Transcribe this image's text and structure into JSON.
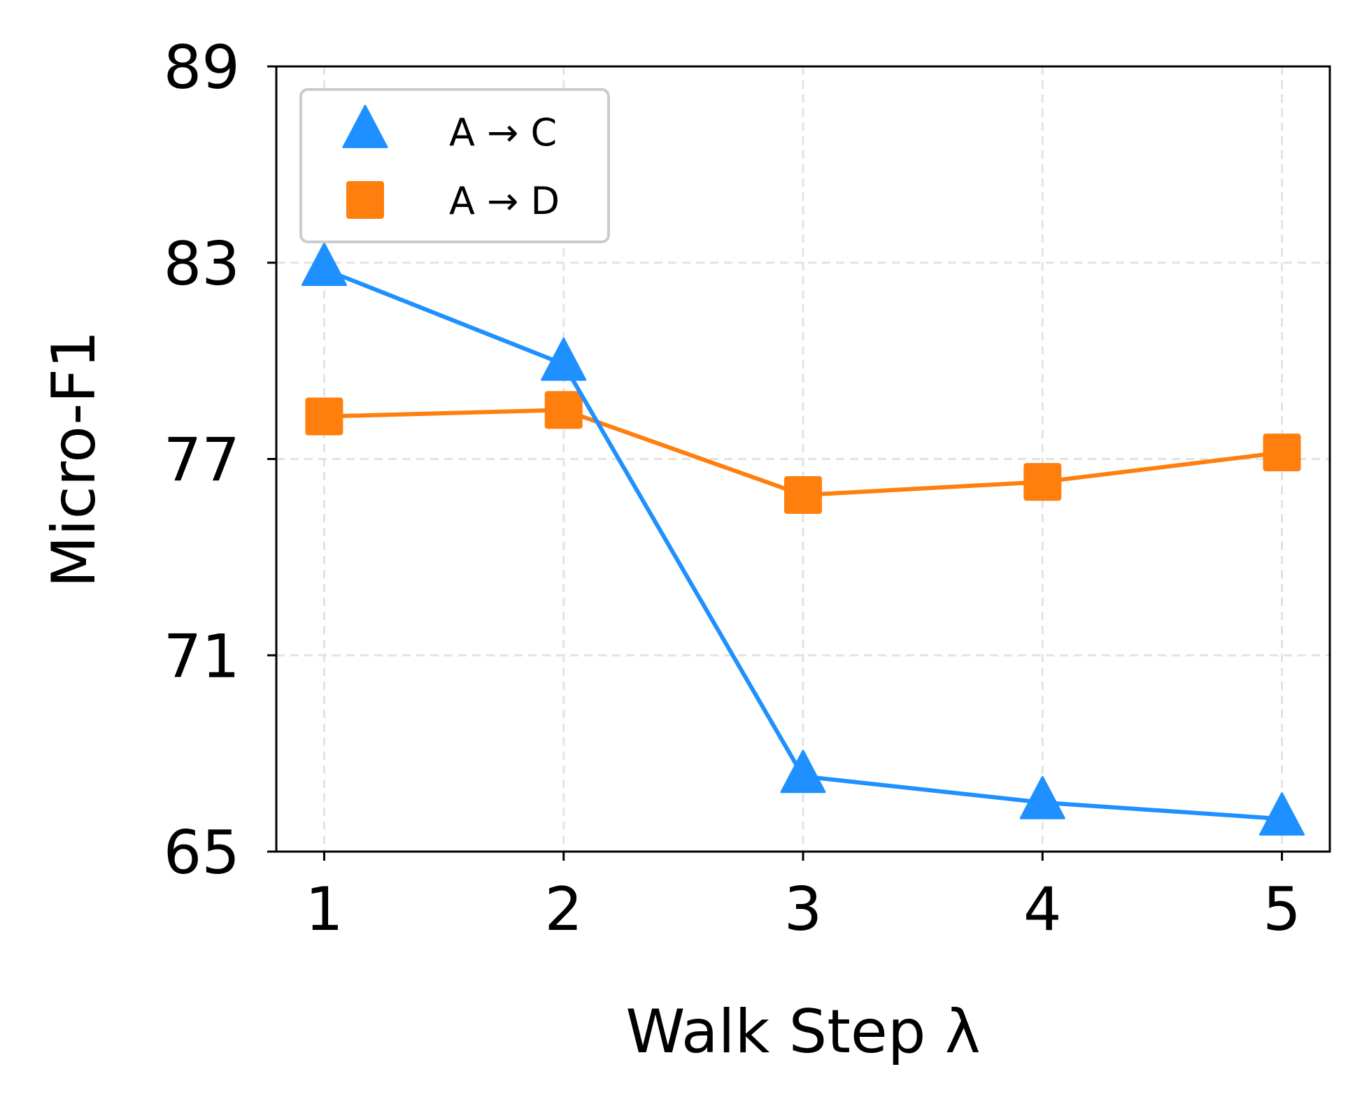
{
  "chart_data": {
    "type": "line",
    "title": "",
    "xlabel": "Walk Step λ",
    "ylabel": "Micro-F1",
    "x": [
      1,
      2,
      3,
      4,
      5
    ],
    "xlim": [
      0.8,
      5.2
    ],
    "ylim": [
      65,
      89
    ],
    "xticks": [
      "1",
      "2",
      "3",
      "4",
      "5"
    ],
    "yticks": [
      "65",
      "71",
      "77",
      "83",
      "89"
    ],
    "grid": true,
    "legend_position": "top-left",
    "series": [
      {
        "name": "A → C",
        "marker": "triangle",
        "color": "#1e90ff",
        "values": [
          82.8,
          79.9,
          67.3,
          66.5,
          66.0
        ]
      },
      {
        "name": "A → D",
        "marker": "square",
        "color": "#ff7f0e",
        "values": [
          78.3,
          78.5,
          75.9,
          76.3,
          77.2
        ]
      }
    ]
  }
}
